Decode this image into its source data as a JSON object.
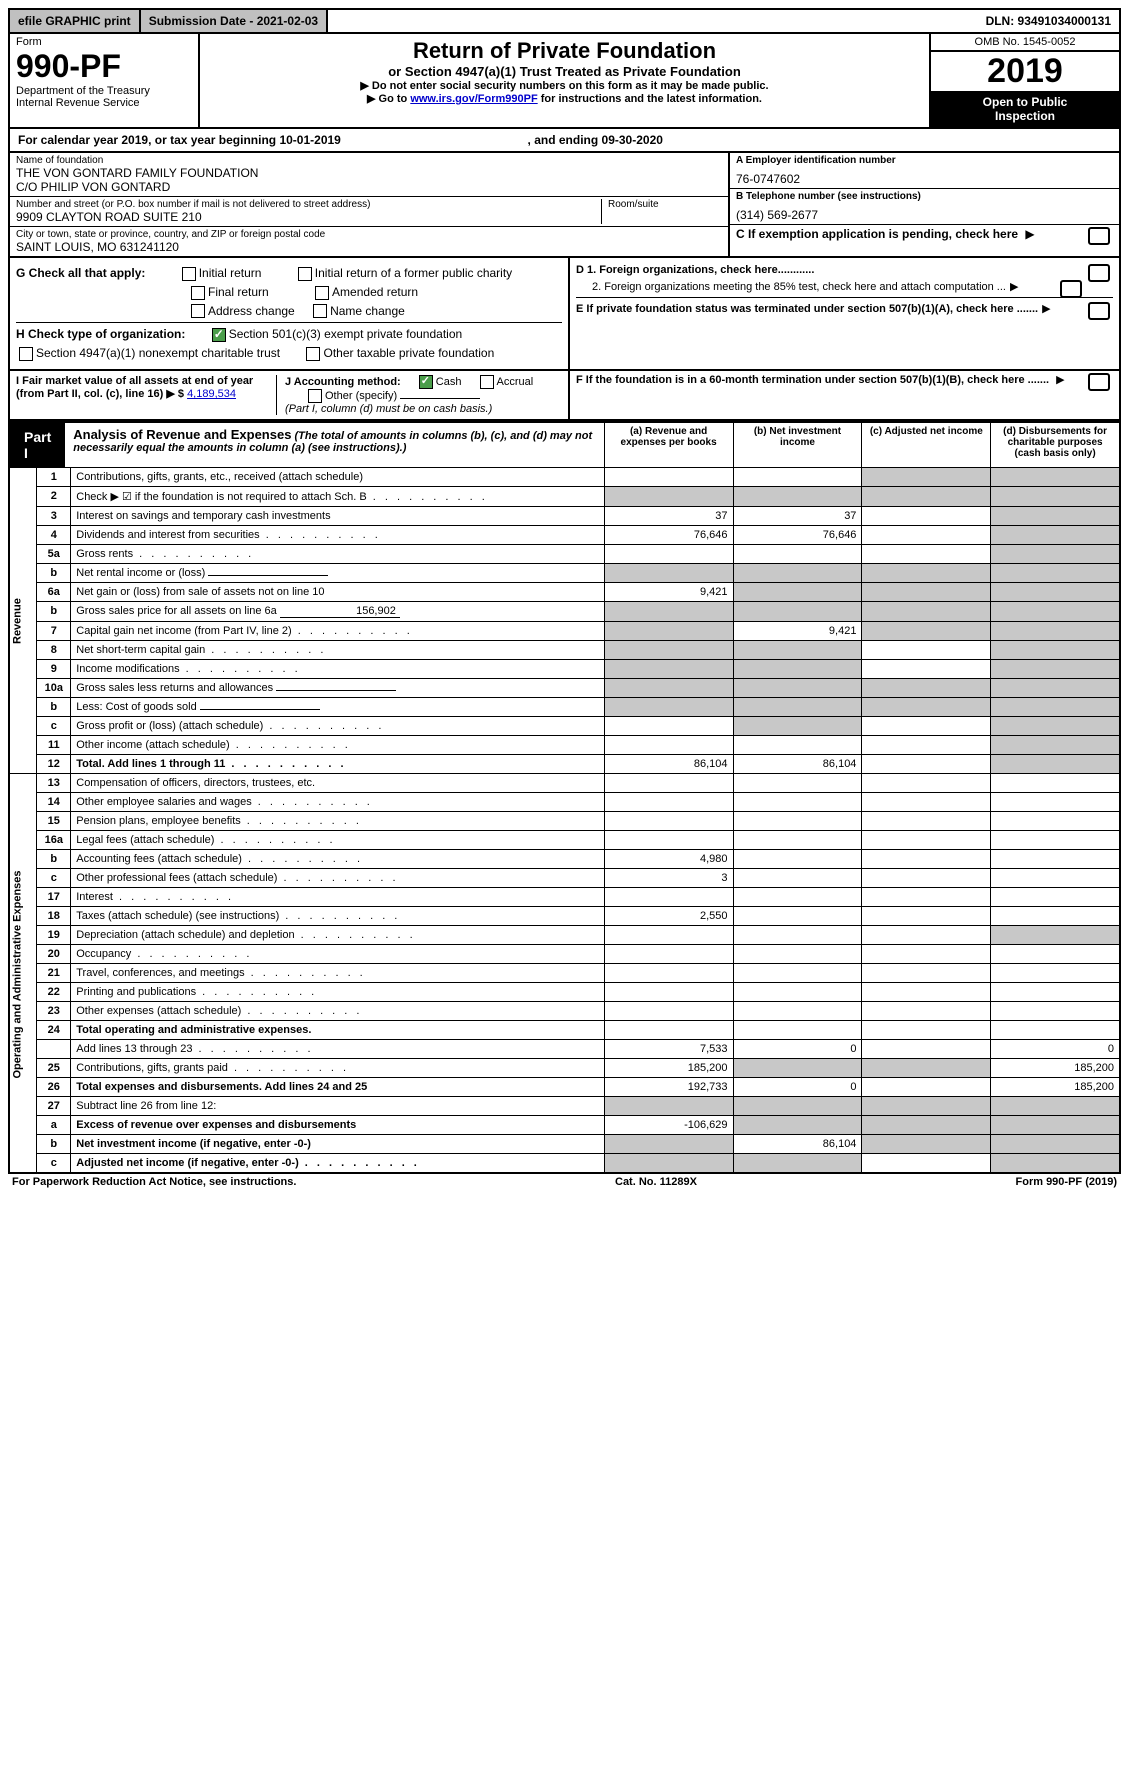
{
  "topbar": {
    "efile": "efile GRAPHIC print",
    "subdate_label": "Submission Date - 2021-02-03",
    "dln": "DLN: 93491034000131"
  },
  "header": {
    "form_label": "Form",
    "form_number": "990-PF",
    "dept1": "Department of the Treasury",
    "dept2": "Internal Revenue Service",
    "title": "Return of Private Foundation",
    "subtitle": "or Section 4947(a)(1) Trust Treated as Private Foundation",
    "instr1": "▶ Do not enter social security numbers on this form as it may be made public.",
    "instr2_pre": "▶ Go to ",
    "instr2_link": "www.irs.gov/Form990PF",
    "instr2_post": " for instructions and the latest information.",
    "omb": "OMB No. 1545-0052",
    "year": "2019",
    "inspect1": "Open to Public",
    "inspect2": "Inspection"
  },
  "cal_year": {
    "pre": "For calendar year 2019, or tax year beginning ",
    "begin": "10-01-2019",
    "mid": ", and ending ",
    "end": "09-30-2020"
  },
  "info": {
    "name_label": "Name of foundation",
    "name1": "THE VON GONTARD FAMILY FOUNDATION",
    "name2": "C/O PHILIP VON GONTARD",
    "ein_label": "A Employer identification number",
    "ein": "76-0747602",
    "street_label": "Number and street (or P.O. box number if mail is not delivered to street address)",
    "street": "9909 CLAYTON ROAD SUITE 210",
    "room_label": "Room/suite",
    "phone_label": "B Telephone number (see instructions)",
    "phone": "(314) 569-2677",
    "city_label": "City or town, state or province, country, and ZIP or foreign postal code",
    "city": "SAINT LOUIS, MO  631241120",
    "c_label": "C If exemption application is pending, check here"
  },
  "checks": {
    "g_label": "G Check all that apply:",
    "initial": "Initial return",
    "initial_former": "Initial return of a former public charity",
    "final": "Final return",
    "amended": "Amended return",
    "addr": "Address change",
    "namechg": "Name change",
    "h_label": "H Check type of organization:",
    "h_501c3": "Section 501(c)(3) exempt private foundation",
    "h_4947": "Section 4947(a)(1) nonexempt charitable trust",
    "h_other": "Other taxable private foundation",
    "d1": "D 1. Foreign organizations, check here............",
    "d2": "2. Foreign organizations meeting the 85% test, check here and attach computation ...",
    "e": "E  If private foundation status was terminated under section 507(b)(1)(A), check here .......",
    "f": "F  If the foundation is in a 60-month termination under section 507(b)(1)(B), check here ......."
  },
  "ij": {
    "i_label": "I Fair market value of all assets at end of year (from Part II, col. (c), line 16) ▶ $",
    "i_val": "4,189,534",
    "j_label": "J Accounting method:",
    "j_cash": "Cash",
    "j_accrual": "Accrual",
    "j_other": "Other (specify)",
    "j_note": "(Part I, column (d) must be on cash basis.)"
  },
  "part1": {
    "label": "Part I",
    "title": "Analysis of Revenue and Expenses",
    "note": "(The total of amounts in columns (b), (c), and (d) may not necessarily equal the amounts in column (a) (see instructions).)",
    "col_a": "(a)   Revenue and expenses per books",
    "col_b": "(b)   Net investment income",
    "col_c": "(c)   Adjusted net income",
    "col_d": "(d)   Disbursements for charitable purposes (cash basis only)"
  },
  "sections": {
    "revenue": "Revenue",
    "opexp": "Operating and Administrative Expenses"
  },
  "rows": [
    {
      "n": "1",
      "d": "Contributions, gifts, grants, etc., received (attach schedule)",
      "a": "",
      "b": "",
      "shaded": [
        "c",
        "d"
      ]
    },
    {
      "n": "2",
      "d": "Check ▶ ☑ if the foundation is not required to attach Sch. B",
      "dots": true,
      "shaded": [
        "a",
        "b",
        "c",
        "d"
      ]
    },
    {
      "n": "3",
      "d": "Interest on savings and temporary cash investments",
      "a": "37",
      "b": "37",
      "shaded": [
        "d"
      ]
    },
    {
      "n": "4",
      "d": "Dividends and interest from securities",
      "dots": true,
      "a": "76,646",
      "b": "76,646",
      "shaded": [
        "d"
      ]
    },
    {
      "n": "5a",
      "d": "Gross rents",
      "dots": true,
      "shaded": [
        "d"
      ]
    },
    {
      "n": "b",
      "d": "Net rental income or (loss)",
      "inline": true,
      "shaded": [
        "a",
        "b",
        "c",
        "d"
      ]
    },
    {
      "n": "6a",
      "d": "Net gain or (loss) from sale of assets not on line 10",
      "a": "9,421",
      "shaded": [
        "b",
        "c",
        "d"
      ]
    },
    {
      "n": "b",
      "d": "Gross sales price for all assets on line 6a",
      "inline": true,
      "inlineval": "156,902",
      "shaded": [
        "a",
        "b",
        "c",
        "d"
      ]
    },
    {
      "n": "7",
      "d": "Capital gain net income (from Part IV, line 2)",
      "dots": true,
      "b": "9,421",
      "shaded": [
        "a",
        "c",
        "d"
      ]
    },
    {
      "n": "8",
      "d": "Net short-term capital gain",
      "dots": true,
      "shaded": [
        "a",
        "b",
        "d"
      ]
    },
    {
      "n": "9",
      "d": "Income modifications",
      "dots": true,
      "shaded": [
        "a",
        "b",
        "d"
      ]
    },
    {
      "n": "10a",
      "d": "Gross sales less returns and allowances",
      "inline": true,
      "shaded": [
        "a",
        "b",
        "c",
        "d"
      ]
    },
    {
      "n": "b",
      "d": "Less: Cost of goods sold",
      "dots": true,
      "inline": true,
      "shaded": [
        "a",
        "b",
        "c",
        "d"
      ]
    },
    {
      "n": "c",
      "d": "Gross profit or (loss) (attach schedule)",
      "dots": true,
      "shaded": [
        "b",
        "d"
      ]
    },
    {
      "n": "11",
      "d": "Other income (attach schedule)",
      "dots": true,
      "shaded": [
        "d"
      ]
    },
    {
      "n": "12",
      "d": "Total. Add lines 1 through 11",
      "dots": true,
      "bold": true,
      "a": "86,104",
      "b": "86,104",
      "shaded": [
        "d"
      ]
    }
  ],
  "exprows": [
    {
      "n": "13",
      "d": "Compensation of officers, directors, trustees, etc."
    },
    {
      "n": "14",
      "d": "Other employee salaries and wages",
      "dots": true
    },
    {
      "n": "15",
      "d": "Pension plans, employee benefits",
      "dots": true
    },
    {
      "n": "16a",
      "d": "Legal fees (attach schedule)",
      "dots": true
    },
    {
      "n": "b",
      "d": "Accounting fees (attach schedule)",
      "dots": true,
      "a": "4,980"
    },
    {
      "n": "c",
      "d": "Other professional fees (attach schedule)",
      "dots": true,
      "a": "3"
    },
    {
      "n": "17",
      "d": "Interest",
      "dots": true
    },
    {
      "n": "18",
      "d": "Taxes (attach schedule) (see instructions)",
      "dots": true,
      "a": "2,550"
    },
    {
      "n": "19",
      "d": "Depreciation (attach schedule) and depletion",
      "dots": true,
      "shaded": [
        "d"
      ]
    },
    {
      "n": "20",
      "d": "Occupancy",
      "dots": true
    },
    {
      "n": "21",
      "d": "Travel, conferences, and meetings",
      "dots": true
    },
    {
      "n": "22",
      "d": "Printing and publications",
      "dots": true
    },
    {
      "n": "23",
      "d": "Other expenses (attach schedule)",
      "dots": true
    },
    {
      "n": "24",
      "d": "Total operating and administrative expenses.",
      "bold": true
    },
    {
      "n": "",
      "d": "Add lines 13 through 23",
      "dots": true,
      "a": "7,533",
      "b": "0",
      "d2": "0"
    },
    {
      "n": "25",
      "d": "Contributions, gifts, grants paid",
      "dots": true,
      "a": "185,200",
      "d2": "185,200",
      "shaded": [
        "b",
        "c"
      ]
    },
    {
      "n": "26",
      "d": "Total expenses and disbursements. Add lines 24 and 25",
      "bold": true,
      "a": "192,733",
      "b": "0",
      "d2": "185,200"
    },
    {
      "n": "27",
      "d": "Subtract line 26 from line 12:",
      "shaded": [
        "a",
        "b",
        "c",
        "d"
      ]
    },
    {
      "n": "a",
      "d": "Excess of revenue over expenses and disbursements",
      "bold": true,
      "a": "-106,629",
      "shaded": [
        "b",
        "c",
        "d"
      ]
    },
    {
      "n": "b",
      "d": "Net investment income (if negative, enter -0-)",
      "bold": true,
      "b": "86,104",
      "shaded": [
        "a",
        "c",
        "d"
      ]
    },
    {
      "n": "c",
      "d": "Adjusted net income (if negative, enter -0-)",
      "bold": true,
      "dots": true,
      "shaded": [
        "a",
        "b",
        "d"
      ]
    }
  ],
  "footer": {
    "left": "For Paperwork Reduction Act Notice, see instructions.",
    "mid": "Cat. No. 11289X",
    "right": "Form 990-PF (2019)"
  }
}
